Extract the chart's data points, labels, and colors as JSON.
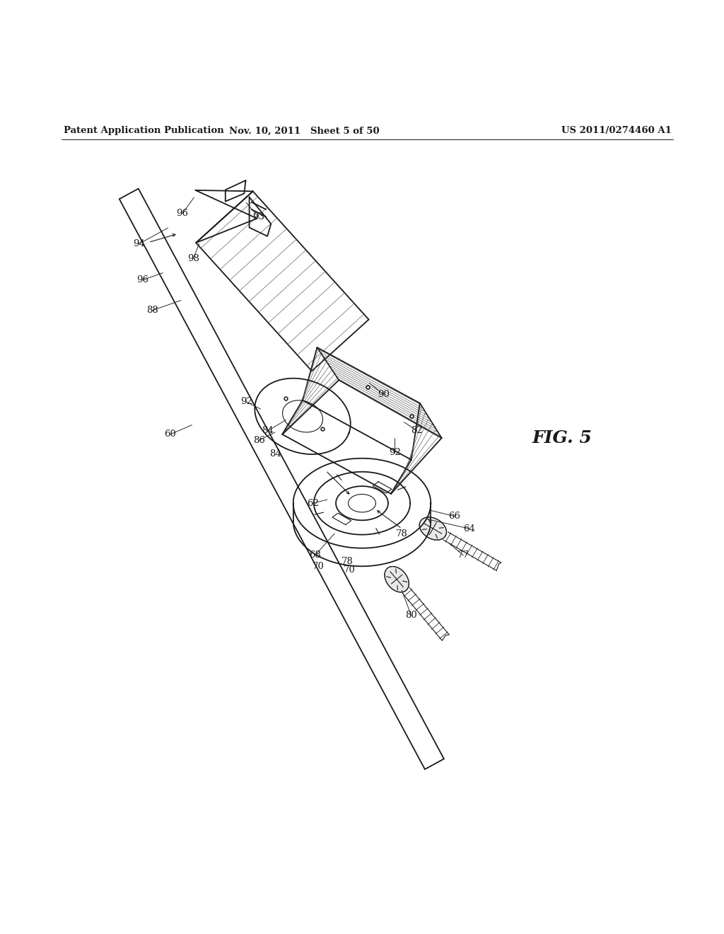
{
  "bg_color": "#ffffff",
  "line_color": "#1a1a1a",
  "hatch_color": "#555555",
  "header_left": "Patent Application Publication",
  "header_mid": "Nov. 10, 2011   Sheet 5 of 50",
  "header_right": "US 2011/0274460 A1",
  "fig_label": "FIG. 5",
  "lw_main": 1.3,
  "lw_thin": 0.8,
  "lw_hatch": 0.45,
  "label_fontsize": 9.5,
  "header_fontsize": 9.5,
  "fig5_fontsize": 18
}
